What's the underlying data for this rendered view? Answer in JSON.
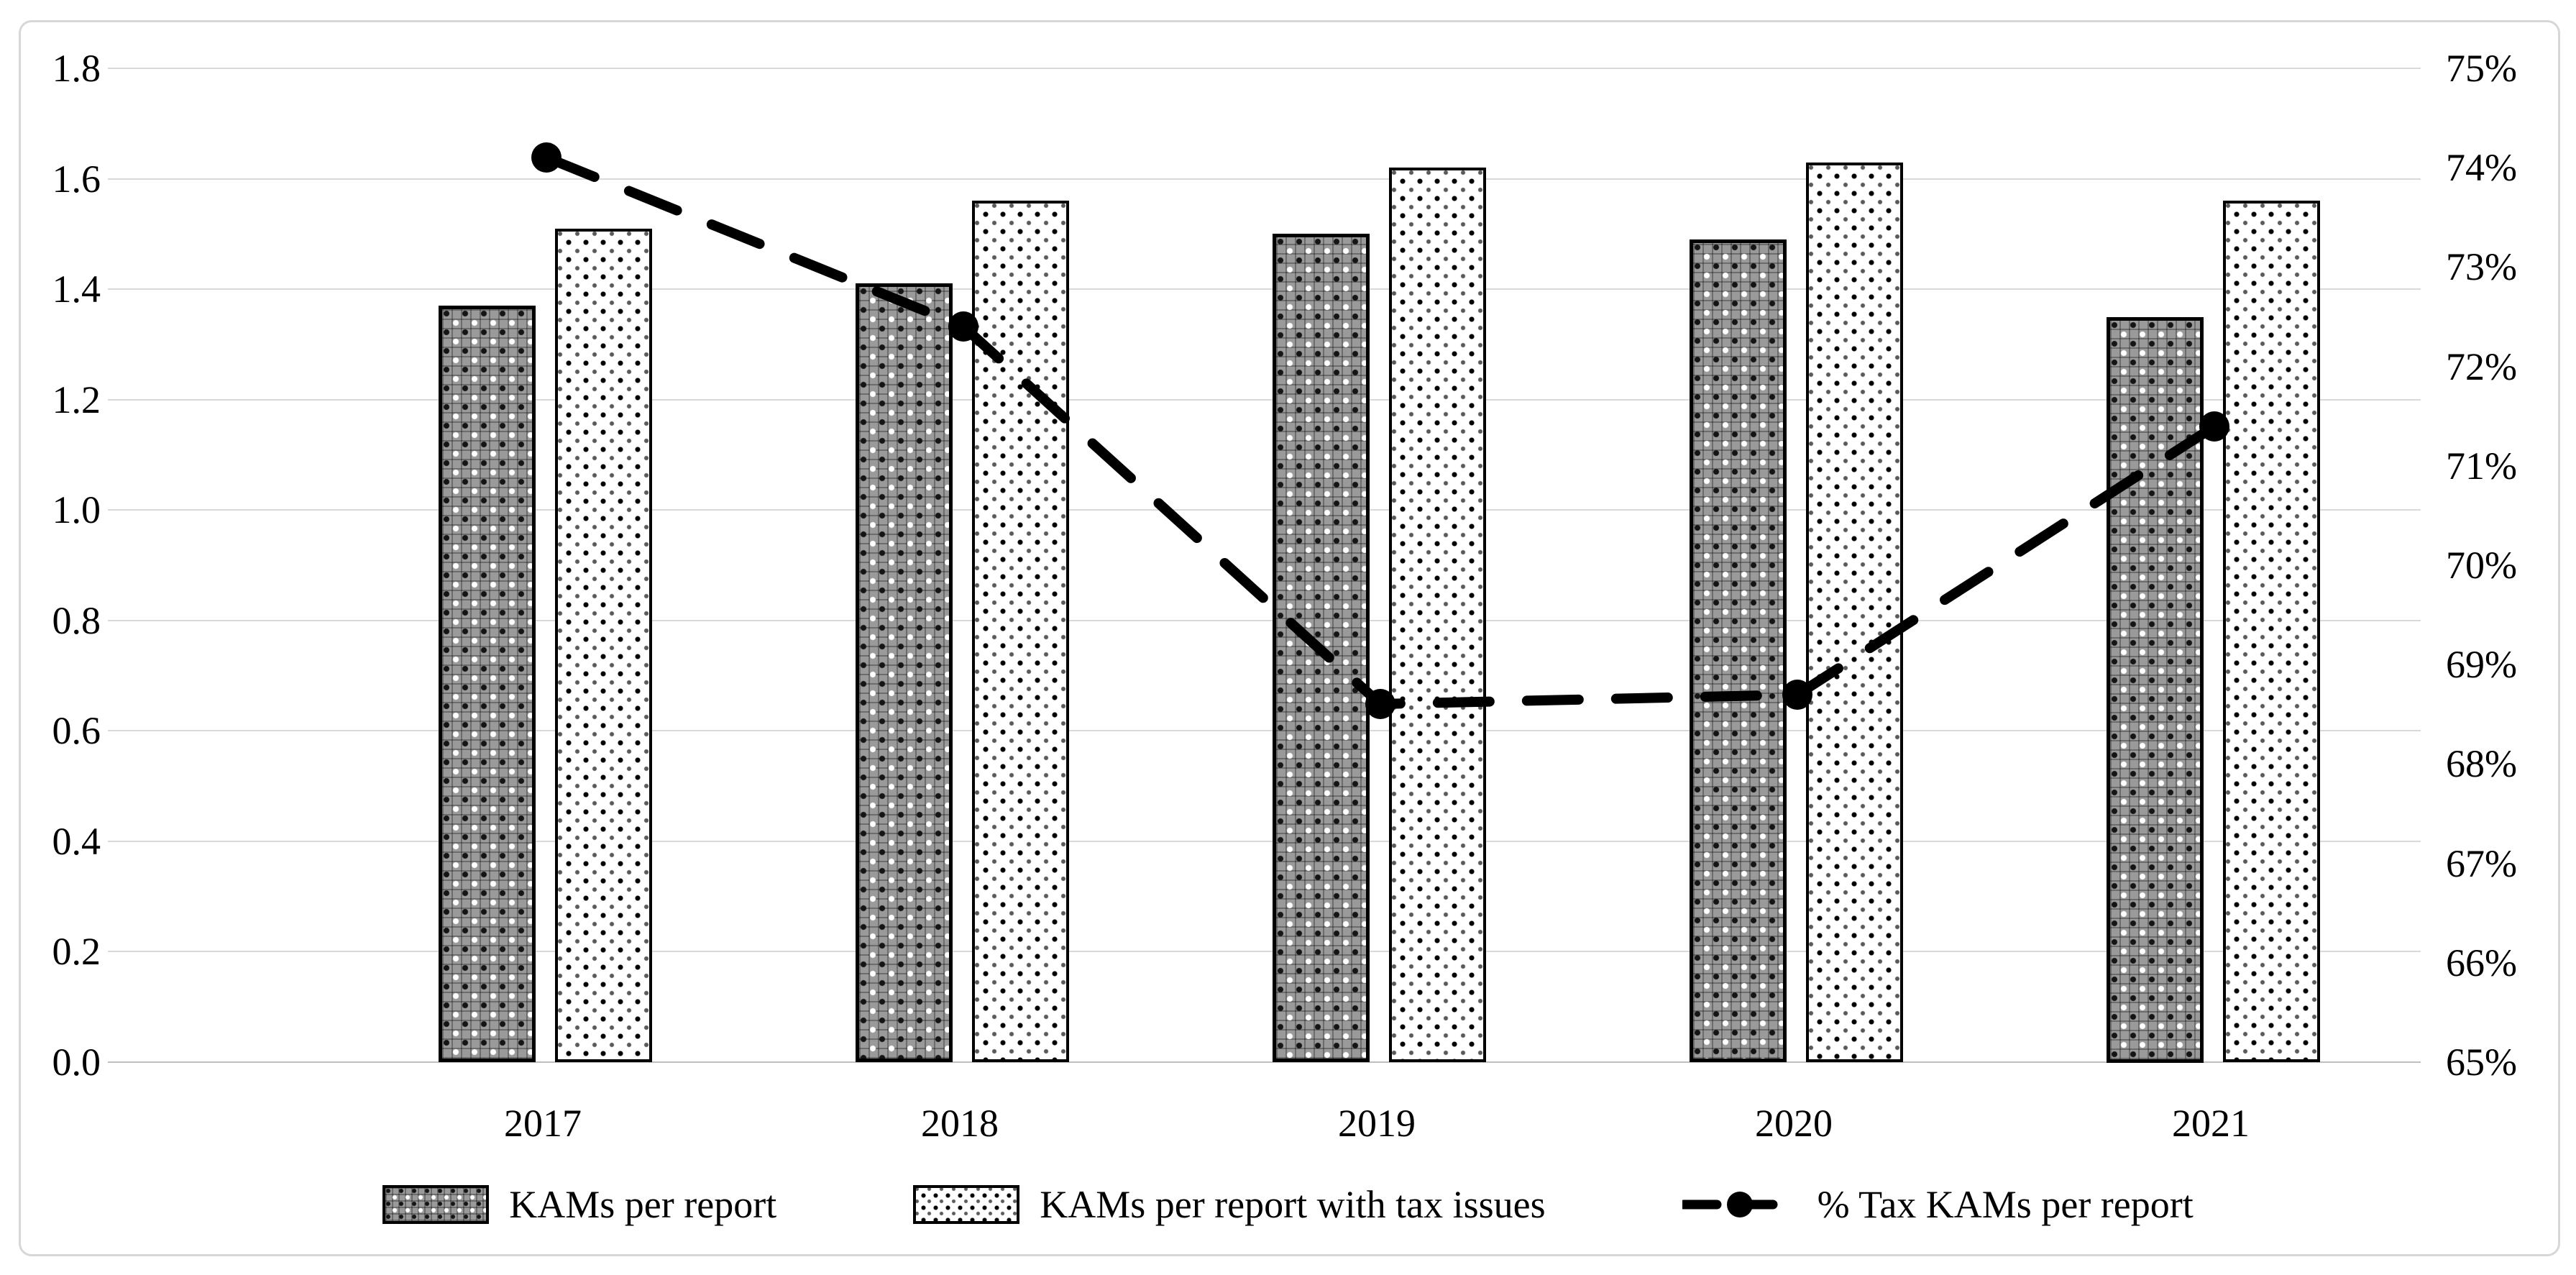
{
  "chart_data": {
    "type": "combo-bar-line",
    "title": "",
    "categories": [
      "2017",
      "2018",
      "2019",
      "2020",
      "2021"
    ],
    "series": [
      {
        "name": "KAMs per report",
        "type": "bar",
        "axis": "left",
        "style": "dark-woven-pattern",
        "values": [
          1.37,
          1.41,
          1.5,
          1.49,
          1.35
        ]
      },
      {
        "name": "KAMs per report with tax issues",
        "type": "bar",
        "axis": "left",
        "style": "light-dotted-pattern",
        "values": [
          1.51,
          1.56,
          1.62,
          1.63,
          1.56
        ]
      },
      {
        "name": "% Tax KAMs per report",
        "type": "line",
        "axis": "right",
        "style": "black-thick-dashed-with-round-markers",
        "values": [
          74.1,
          72.4,
          68.6,
          68.7,
          71.4
        ]
      }
    ],
    "left_axis": {
      "min": 0.0,
      "max": 1.8,
      "step": 0.2,
      "tick_labels": [
        "0.0",
        "0.2",
        "0.4",
        "0.6",
        "0.8",
        "1.0",
        "1.2",
        "1.4",
        "1.6",
        "1.8"
      ]
    },
    "right_axis": {
      "min": 65,
      "max": 75,
      "step": 1,
      "tick_labels": [
        "65%",
        "66%",
        "67%",
        "68%",
        "69%",
        "70%",
        "71%",
        "72%",
        "73%",
        "74%",
        "75%"
      ]
    },
    "legend": {
      "position": "bottom",
      "entries": [
        "KAMs per report",
        "KAMs per report with tax issues",
        "% Tax KAMs per report"
      ]
    },
    "grid": {
      "horizontal": true,
      "vertical": false,
      "color": "#d9d9d9"
    },
    "colors": {
      "background": "#ffffff",
      "bar_border": "#000000",
      "line": "#000000",
      "text": "#000000",
      "frame": "#d7d7d7"
    }
  }
}
